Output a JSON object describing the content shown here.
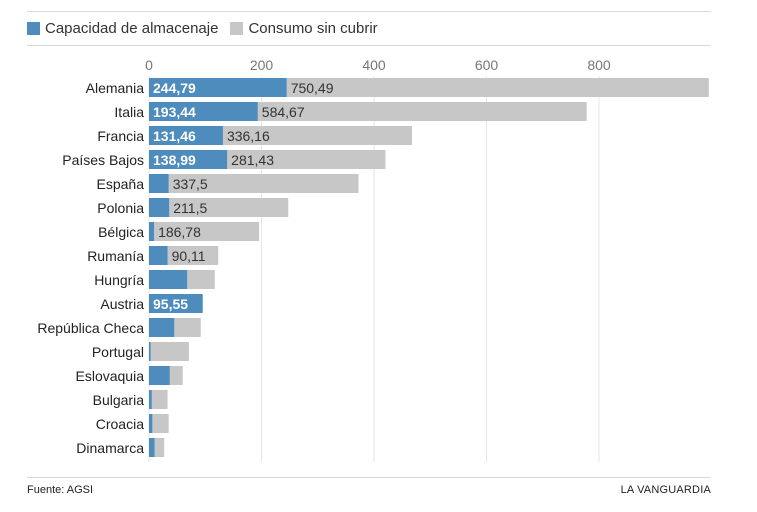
{
  "legend": [
    {
      "label": "Capacidad de almacenaje",
      "color": "#4f8cbe"
    },
    {
      "label": "Consumo sin cubrir",
      "color": "#c7c7c7"
    }
  ],
  "footer": {
    "source": "Fuente: AGSI",
    "brand": "LA VANGUARDIA"
  },
  "chart_data": {
    "type": "bar",
    "orientation": "horizontal",
    "stacked": true,
    "xlim": [
      0,
      1000
    ],
    "xticks": [
      "0",
      "200",
      "400",
      "600",
      "800"
    ],
    "grid": true,
    "legend_position": "top-left",
    "categories": [
      "Alemania",
      "Italia",
      "Francia",
      "Países Bajos",
      "España",
      "Polonia",
      "Bélgica",
      "Rumanía",
      "Hungría",
      "Austria",
      "República Checa",
      "Portugal",
      "Eslovaquia",
      "Bulgaria",
      "Croacia",
      "Dinamarca"
    ],
    "series": [
      {
        "name": "Capacidad de almacenaje",
        "color": "#4f8cbe",
        "values": [
          244.79,
          193.44,
          131.46,
          138.99,
          35,
          36,
          9,
          33,
          68,
          95.55,
          45,
          3,
          37,
          5,
          6,
          10
        ],
        "labels": [
          "244,79",
          "193,44",
          "131,46",
          "138,99",
          "",
          "",
          "",
          "",
          "",
          "95,55",
          "",
          "",
          "",
          "",
          "",
          ""
        ]
      },
      {
        "name": "Consumo sin cubrir",
        "color": "#c7c7c7",
        "values": [
          750.49,
          584.67,
          336.16,
          281.43,
          337.5,
          211.5,
          186.78,
          90.11,
          49,
          0,
          47,
          68,
          23,
          28,
          29,
          17
        ],
        "labels": [
          "750,49",
          "584,67",
          "336,16",
          "281,43",
          "337,5",
          "211,5",
          "186,78",
          "90,11",
          "",
          "",
          "",
          "",
          "",
          "",
          "",
          ""
        ]
      }
    ]
  }
}
